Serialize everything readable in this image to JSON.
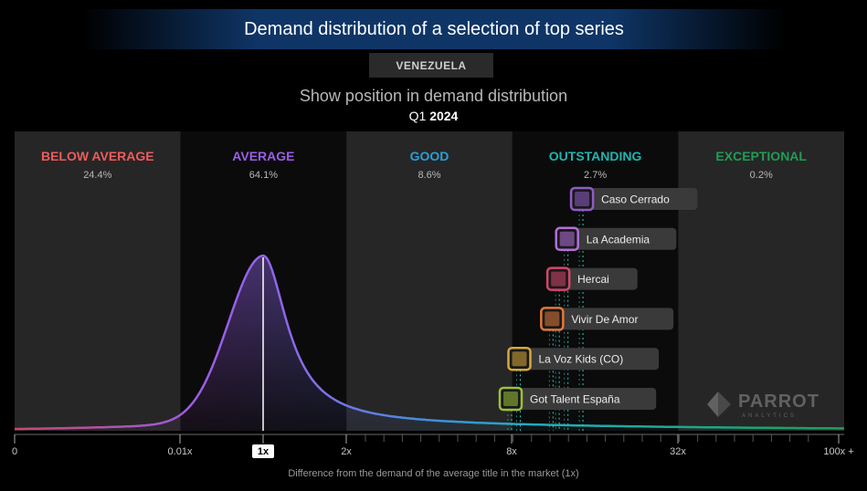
{
  "header": {
    "title": "Demand distribution of a selection of top series",
    "country": "VENEZUELA",
    "subtitle": "Show position in demand distribution",
    "period_quarter": "Q1",
    "period_year": "2024"
  },
  "footer": {
    "xlabel": "Difference from the demand of the average title in the market (1x)"
  },
  "watermark": {
    "brand": "PARROT",
    "sub": "ANALYTICS"
  },
  "colors": {
    "below_average": "#ef5b5b",
    "average": "#9b5de5",
    "good": "#2a9fd6",
    "outstanding": "#1fb5b0",
    "exceptional": "#1f9d55"
  },
  "chart_data": {
    "type": "area",
    "bands": [
      {
        "name": "BELOW AVERAGE",
        "share": "24.4%",
        "color": "#ef5b5b"
      },
      {
        "name": "AVERAGE",
        "share": "64.1%",
        "color": "#9b5de5"
      },
      {
        "name": "GOOD",
        "share": "8.6%",
        "color": "#2a9fd6"
      },
      {
        "name": "OUTSTANDING",
        "share": "2.7%",
        "color": "#1fb5b0"
      },
      {
        "name": "EXCEPTIONAL",
        "share": "0.2%",
        "color": "#1f9d55"
      }
    ],
    "x_ticks": [
      "0",
      "0.01x",
      "1x",
      "2x",
      "8x",
      "32x",
      "100x +"
    ],
    "average_marker": "1x",
    "titles": [
      {
        "name": "Caso Cerrado",
        "demand_x": 14.5,
        "color": "#8e5cc7"
      },
      {
        "name": "La Academia",
        "demand_x": 12.8,
        "color": "#b36fd8"
      },
      {
        "name": "Hercai",
        "demand_x": 11.9,
        "color": "#d6456e"
      },
      {
        "name": "Vivir De Amor",
        "demand_x": 11.3,
        "color": "#e0783a"
      },
      {
        "name": "La Voz Kids (CO)",
        "demand_x": 8.6,
        "color": "#d8a83a"
      },
      {
        "name": "Got Talent España",
        "demand_x": 8.0,
        "color": "#9ac23a"
      }
    ]
  }
}
